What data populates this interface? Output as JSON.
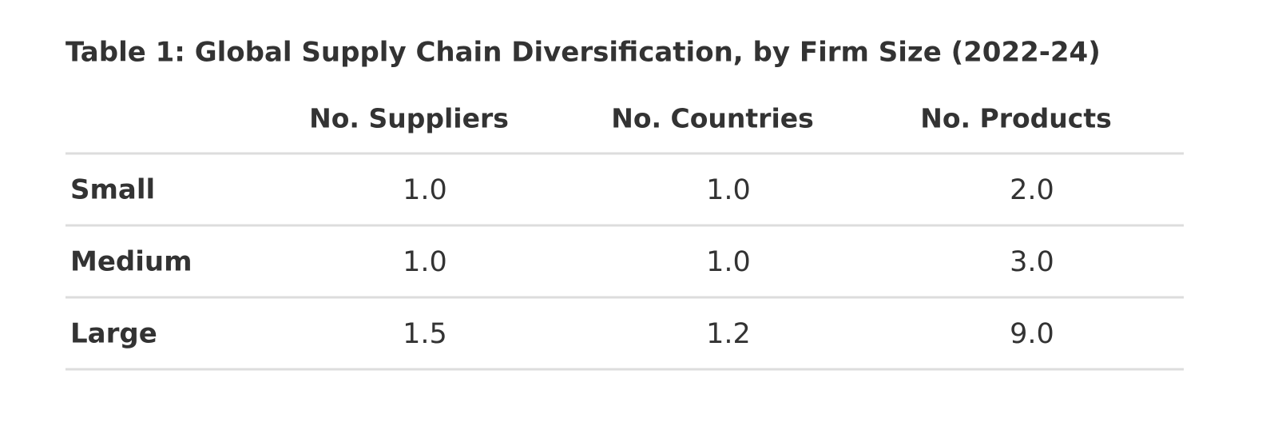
{
  "table": {
    "title": "Table 1: Global Supply Chain Diversification, by Firm Size (2022-24)",
    "columns": [
      "No. Suppliers",
      "No. Countries",
      "No. Products"
    ],
    "rows": [
      {
        "label": "Small",
        "values": [
          "1.0",
          "1.0",
          "2.0"
        ]
      },
      {
        "label": "Medium",
        "values": [
          "1.0",
          "1.0",
          "3.0"
        ]
      },
      {
        "label": "Large",
        "values": [
          "1.5",
          "1.2",
          "9.0"
        ]
      }
    ]
  }
}
